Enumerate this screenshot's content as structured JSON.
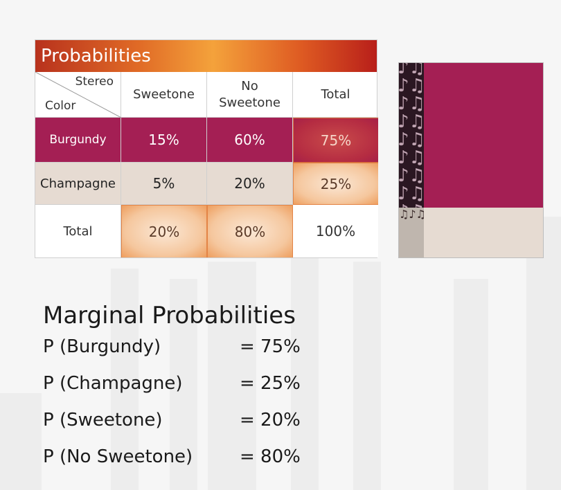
{
  "table": {
    "title": "Probabilities",
    "corner": {
      "column_header": "Stereo",
      "row_header": "Color"
    },
    "columns": [
      "Sweetone",
      "No Sweetone",
      "Total"
    ],
    "rows": [
      {
        "label": "Burgundy",
        "values": [
          "15%",
          "60%",
          "75%"
        ]
      },
      {
        "label": "Champagne",
        "values": [
          "5%",
          "20%",
          "25%"
        ]
      },
      {
        "label": "Total",
        "values": [
          "20%",
          "80%",
          "100%"
        ]
      }
    ]
  },
  "marginal": {
    "title": "Marginal Probabilities",
    "items": [
      {
        "label": "P (Burgundy)",
        "value": "= 75%"
      },
      {
        "label": "P (Champagne)",
        "value": "= 25%"
      },
      {
        "label": "P (Sweetone)",
        "value": "= 20%"
      },
      {
        "label": "P (No Sweetone)",
        "value": "= 80%"
      }
    ]
  },
  "colors": {
    "burgundy": "#a41f54",
    "champagne": "#e6dbd2",
    "highlight_orange": "#f5c79e",
    "title_gradient_mid": "#f4a23b"
  }
}
